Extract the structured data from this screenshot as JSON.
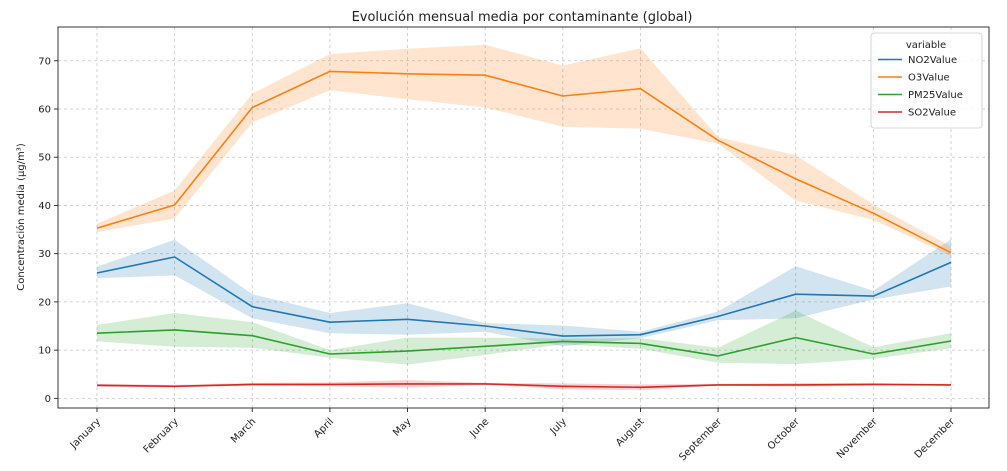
{
  "chart_data": {
    "type": "line",
    "title": "Evolución mensual media por contaminante (global)",
    "xlabel": "",
    "ylabel": "Concentración media (µg/m³)",
    "categories": [
      "January",
      "February",
      "March",
      "April",
      "May",
      "June",
      "July",
      "August",
      "September",
      "October",
      "November",
      "December"
    ],
    "ylim": [
      -2,
      77
    ],
    "yticks": [
      0,
      10,
      20,
      30,
      40,
      50,
      60,
      70
    ],
    "grid": true,
    "legend": {
      "title": "variable",
      "placement": "top-right"
    },
    "series": [
      {
        "name": "NO2Value",
        "color": "#1f77b4",
        "values": [
          26.0,
          29.3,
          19.0,
          15.8,
          16.4,
          15.0,
          12.9,
          13.2,
          17.0,
          21.6,
          21.2,
          28.2
        ],
        "lower": [
          24.9,
          25.5,
          16.6,
          13.5,
          13.2,
          13.8,
          10.8,
          12.5,
          16.2,
          16.6,
          20.5,
          23.2
        ],
        "upper": [
          27.3,
          32.9,
          21.6,
          17.7,
          19.7,
          15.6,
          15.1,
          13.8,
          18.0,
          27.4,
          22.3,
          33.0
        ]
      },
      {
        "name": "O3Value",
        "color": "#ff7f0e",
        "values": [
          35.3,
          40.1,
          60.3,
          67.8,
          67.3,
          67.0,
          62.7,
          64.2,
          53.5,
          45.5,
          38.4,
          30.2
        ],
        "lower": [
          34.5,
          37.3,
          57.2,
          63.9,
          62.0,
          60.3,
          56.3,
          55.9,
          52.8,
          41.0,
          37.0,
          29.5
        ],
        "upper": [
          36.2,
          43.1,
          63.2,
          71.4,
          72.5,
          73.3,
          69.0,
          72.6,
          54.2,
          50.4,
          40.2,
          31.5
        ]
      },
      {
        "name": "PM25Value",
        "color": "#2ca02c",
        "values": [
          13.5,
          14.2,
          13.0,
          9.2,
          9.8,
          10.8,
          11.8,
          11.4,
          8.8,
          12.6,
          9.2,
          11.9
        ],
        "lower": [
          11.8,
          10.7,
          10.5,
          8.4,
          7.0,
          9.0,
          11.2,
          10.3,
          7.4,
          7.1,
          8.2,
          10.4
        ],
        "upper": [
          15.2,
          17.7,
          15.8,
          10.0,
          12.6,
          12.6,
          12.4,
          12.5,
          10.5,
          18.2,
          10.6,
          13.5
        ]
      },
      {
        "name": "SO2Value",
        "color": "#d62728",
        "values": [
          2.7,
          2.5,
          2.9,
          2.9,
          3.0,
          3.0,
          2.5,
          2.3,
          2.8,
          2.8,
          2.9,
          2.8
        ],
        "lower": [
          2.4,
          2.3,
          2.6,
          2.5,
          2.2,
          2.8,
          1.9,
          1.7,
          2.6,
          2.4,
          2.6,
          2.6
        ],
        "upper": [
          3.0,
          2.8,
          3.2,
          3.3,
          3.8,
          3.2,
          3.1,
          2.9,
          3.0,
          3.2,
          3.2,
          3.0
        ]
      }
    ]
  }
}
